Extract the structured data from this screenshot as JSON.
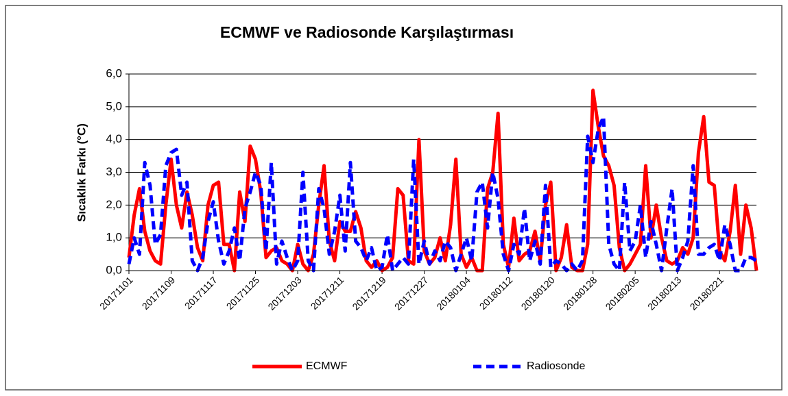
{
  "chart_data": {
    "type": "line",
    "title": "ECMWF ve Radiosonde Karşılaştırması",
    "y_label": "Sıcaklık Farkı (°C)",
    "categories": [
      "20171101",
      null,
      null,
      null,
      null,
      null,
      null,
      null,
      "20171109",
      null,
      null,
      null,
      null,
      null,
      null,
      null,
      "20171117",
      null,
      null,
      null,
      null,
      null,
      null,
      null,
      "20171125",
      null,
      null,
      null,
      null,
      null,
      null,
      null,
      "20171203",
      null,
      null,
      null,
      null,
      null,
      null,
      null,
      "20171211",
      null,
      null,
      null,
      null,
      null,
      null,
      null,
      "20171219",
      null,
      null,
      null,
      null,
      null,
      null,
      null,
      "20171227",
      null,
      null,
      null,
      null,
      null,
      null,
      null,
      "20180104",
      null,
      null,
      null,
      null,
      null,
      null,
      null,
      "20180112",
      null,
      null,
      null,
      null,
      null,
      null,
      null,
      "20180120",
      null,
      null,
      null,
      null,
      null,
      null,
      null,
      "20180128",
      null,
      null,
      null,
      null,
      null,
      null,
      null,
      "20180205",
      null,
      null,
      null,
      null,
      null,
      null,
      null,
      "20180213",
      null,
      null,
      null,
      null,
      null,
      null,
      null,
      "20180221",
      null,
      null,
      null,
      null,
      null,
      null,
      null
    ],
    "series": [
      {
        "name": "ECMWF",
        "color": "#ff0000",
        "dash": false,
        "values": [
          0.4,
          1.7,
          2.5,
          1.2,
          0.6,
          0.3,
          0.2,
          2.0,
          3.4,
          2.0,
          1.3,
          2.4,
          1.7,
          0.7,
          0.3,
          2.0,
          2.6,
          2.7,
          0.8,
          0.8,
          0.0,
          2.4,
          1.5,
          3.8,
          3.4,
          2.4,
          0.4,
          0.6,
          0.7,
          0.3,
          0.2,
          0.0,
          0.8,
          0.2,
          0.0,
          0.5,
          2.0,
          3.2,
          0.9,
          0.3,
          1.5,
          1.2,
          1.2,
          1.8,
          1.3,
          0.3,
          0.1,
          0.3,
          0.0,
          0.1,
          0.4,
          2.5,
          2.3,
          0.3,
          0.2,
          4.0,
          0.6,
          0.2,
          0.4,
          1.0,
          0.3,
          1.4,
          3.4,
          0.5,
          0.1,
          0.4,
          0.0,
          0.0,
          2.5,
          3.0,
          4.8,
          0.8,
          0.1,
          1.6,
          0.3,
          0.5,
          0.6,
          1.2,
          0.3,
          2.0,
          2.7,
          0.0,
          0.4,
          1.4,
          0.1,
          0.0,
          0.0,
          0.8,
          5.5,
          4.4,
          3.5,
          3.2,
          2.6,
          0.7,
          0.0,
          0.2,
          0.5,
          0.8,
          3.2,
          1.0,
          2.0,
          1.0,
          0.3,
          0.2,
          0.3,
          0.7,
          0.5,
          1.0,
          3.6,
          4.7,
          2.7,
          2.6,
          0.6,
          0.3,
          1.2,
          2.6,
          0.5,
          2.0,
          1.3,
          0.0
        ]
      },
      {
        "name": "Radiosonde",
        "color": "#0000ff",
        "dash": true,
        "values": [
          0.2,
          1.0,
          0.5,
          3.3,
          2.6,
          0.8,
          1.1,
          3.2,
          3.6,
          3.7,
          2.3,
          2.7,
          0.3,
          0.0,
          0.4,
          1.5,
          2.1,
          0.9,
          0.2,
          0.6,
          1.3,
          0.3,
          1.9,
          2.4,
          3.0,
          2.6,
          0.6,
          3.3,
          0.2,
          0.9,
          0.4,
          0.0,
          0.3,
          3.0,
          0.3,
          0.0,
          2.5,
          1.9,
          0.5,
          1.2,
          2.3,
          0.6,
          3.3,
          0.9,
          0.7,
          0.3,
          0.7,
          0.0,
          0.1,
          1.1,
          0.0,
          0.2,
          0.4,
          0.2,
          3.4,
          0.2,
          0.9,
          0.2,
          0.6,
          0.3,
          0.9,
          0.7,
          0.0,
          0.5,
          1.0,
          0.3,
          2.4,
          2.7,
          1.3,
          3.0,
          2.2,
          0.5,
          0.0,
          0.8,
          0.5,
          1.9,
          0.3,
          0.9,
          0.2,
          2.6,
          0.1,
          0.3,
          0.2,
          0.0,
          0.2,
          0.0,
          0.3,
          4.1,
          3.3,
          4.3,
          4.7,
          0.8,
          0.2,
          0.0,
          2.7,
          0.6,
          0.9,
          2.0,
          0.4,
          1.5,
          0.8,
          0.0,
          1.3,
          2.5,
          0.0,
          0.4,
          0.9,
          3.2,
          0.5,
          0.5,
          0.7,
          0.8,
          0.3,
          1.4,
          0.8,
          0.0,
          0.0,
          0.4,
          0.4,
          0.3
        ]
      }
    ],
    "ylim": [
      0,
      6
    ],
    "yticks": [
      {
        "value": 0,
        "label": "0,0"
      },
      {
        "value": 1,
        "label": "1,0"
      },
      {
        "value": 2,
        "label": "2,0"
      },
      {
        "value": 3,
        "label": "3,0"
      },
      {
        "value": 4,
        "label": "4,0"
      },
      {
        "value": 5,
        "label": "5,0"
      },
      {
        "value": 6,
        "label": "6,0"
      }
    ],
    "grid": true,
    "legend": "bottom"
  }
}
